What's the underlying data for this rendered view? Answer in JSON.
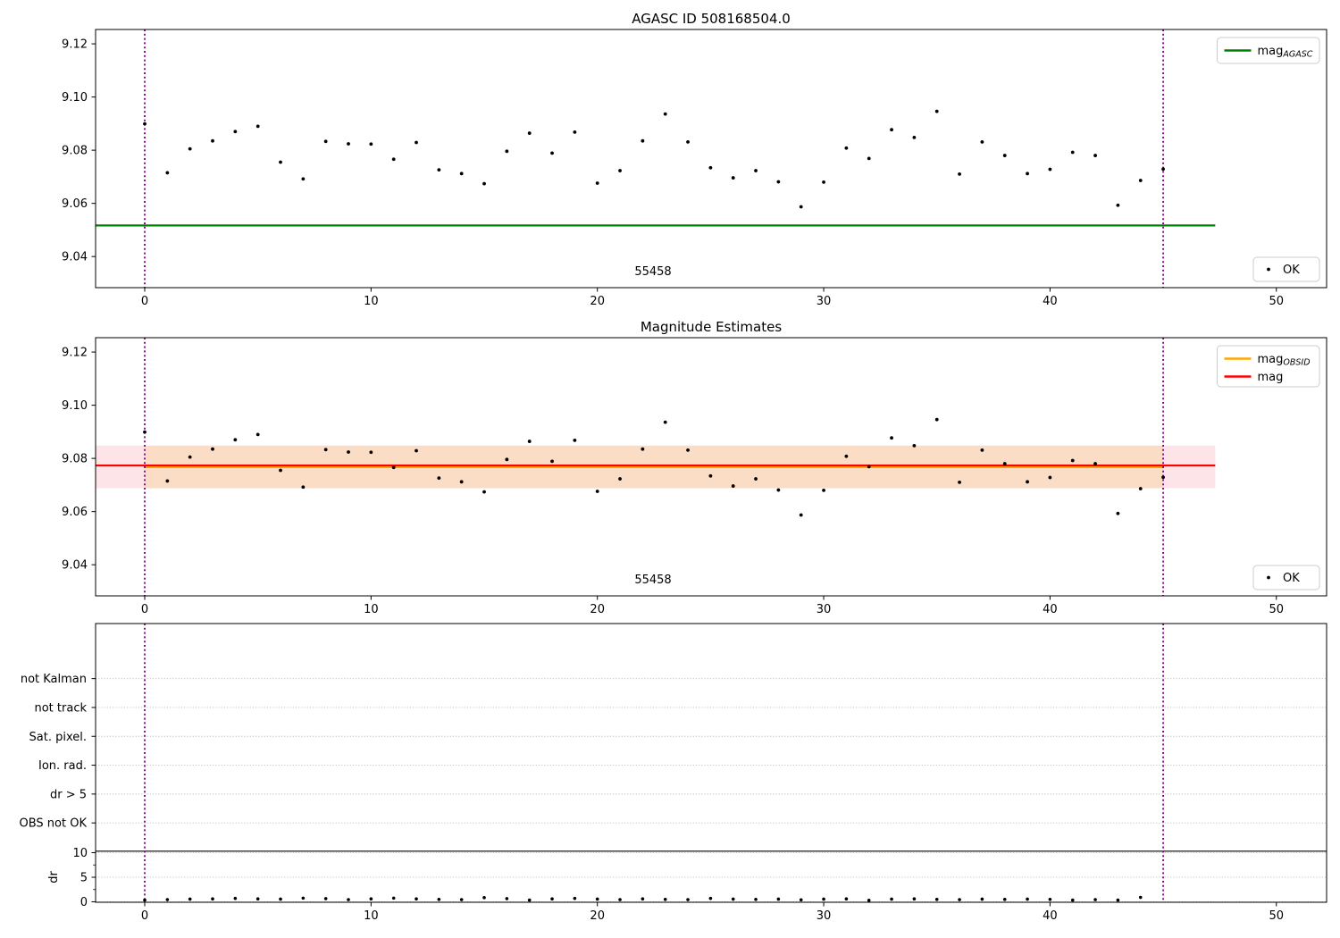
{
  "figure": {
    "background": "#ffffff"
  },
  "colors": {
    "point": "#000000",
    "vline": "#800080",
    "grid": "#b0b0b0",
    "agasc_line": "#008000",
    "mag_line": "#ff0000",
    "obsid_line": "#ffa500",
    "mag_band": "#fce4e8",
    "obsid_band": "#fbdcc4",
    "separator": "#000000"
  },
  "chart_data": [
    {
      "type": "scatter",
      "title": "AGASC ID 508168504.0",
      "xlim": [
        -2.171,
        52.22
      ],
      "ylim": [
        9.0283,
        9.1254
      ],
      "xticks": [
        0,
        10,
        20,
        30,
        40,
        50
      ],
      "yticks": [
        9.04,
        9.06,
        9.08,
        9.1,
        9.12
      ],
      "x": [
        0,
        1,
        2,
        3,
        4,
        5,
        6,
        7,
        8,
        9,
        10,
        11,
        12,
        13,
        14,
        15,
        16,
        17,
        18,
        19,
        20,
        21,
        22,
        23,
        24,
        25,
        26,
        27,
        28,
        29,
        30,
        31,
        32,
        33,
        34,
        35,
        36,
        37,
        38,
        39,
        40,
        41,
        42,
        43,
        44,
        45
      ],
      "y": [
        9.0899,
        9.0715,
        9.0805,
        9.0835,
        9.087,
        9.089,
        9.0755,
        9.0692,
        9.0833,
        9.0824,
        9.0823,
        9.0766,
        9.0829,
        9.0726,
        9.0712,
        9.0674,
        9.0796,
        9.0864,
        9.0789,
        9.0868,
        9.0676,
        9.0723,
        9.0835,
        9.0936,
        9.0831,
        9.0734,
        9.0696,
        9.0723,
        9.0681,
        9.0587,
        9.068,
        9.0808,
        9.0769,
        9.0877,
        9.0848,
        9.0946,
        9.071,
        9.0831,
        9.078,
        9.0712,
        9.0728,
        9.0792,
        9.078,
        9.0593,
        9.0686,
        9.0729
      ],
      "hlines": [
        {
          "name": "mag_AGASC",
          "value": 9.0517,
          "color_key": "agasc_line",
          "x0": -2.171,
          "x1": 47.3
        }
      ],
      "vlines": [
        0,
        45
      ],
      "annotation": {
        "text": "55458",
        "x": 22.5
      },
      "legend": [
        {
          "main": "mag",
          "sub": "AGASC",
          "color_key": "agasc_line"
        }
      ],
      "marker_legend": {
        "label": "OK"
      }
    },
    {
      "type": "scatter",
      "title": "Magnitude Estimates",
      "xlim": [
        -2.171,
        52.22
      ],
      "ylim": [
        9.0283,
        9.1254
      ],
      "xticks": [
        0,
        10,
        20,
        30,
        40,
        50
      ],
      "yticks": [
        9.04,
        9.06,
        9.08,
        9.1,
        9.12
      ],
      "x": [
        0,
        1,
        2,
        3,
        4,
        5,
        6,
        7,
        8,
        9,
        10,
        11,
        12,
        13,
        14,
        15,
        16,
        17,
        18,
        19,
        20,
        21,
        22,
        23,
        24,
        25,
        26,
        27,
        28,
        29,
        30,
        31,
        32,
        33,
        34,
        35,
        36,
        37,
        38,
        39,
        40,
        41,
        42,
        43,
        44,
        45
      ],
      "y": [
        9.0899,
        9.0715,
        9.0805,
        9.0835,
        9.087,
        9.089,
        9.0755,
        9.0692,
        9.0833,
        9.0824,
        9.0823,
        9.0766,
        9.0829,
        9.0726,
        9.0712,
        9.0674,
        9.0796,
        9.0864,
        9.0789,
        9.0868,
        9.0676,
        9.0723,
        9.0835,
        9.0936,
        9.0831,
        9.0734,
        9.0696,
        9.0723,
        9.0681,
        9.0587,
        9.068,
        9.0808,
        9.0769,
        9.0877,
        9.0848,
        9.0946,
        9.071,
        9.0831,
        9.078,
        9.0712,
        9.0728,
        9.0792,
        9.078,
        9.0593,
        9.0686,
        9.0729
      ],
      "bands": [
        {
          "lo": 9.0688,
          "hi": 9.0848,
          "color_key": "mag_band",
          "x0": -2.171,
          "x1": 47.3
        },
        {
          "lo": 9.0688,
          "hi": 9.0848,
          "color_key": "obsid_band",
          "x0": 0,
          "x1": 45
        }
      ],
      "hlines": [
        {
          "name": "mag_OBSID",
          "value": 9.0772,
          "color_key": "obsid_line",
          "x0": 0,
          "x1": 45
        },
        {
          "name": "mag",
          "value": 9.0772,
          "color_key": "mag_line",
          "x0": -2.171,
          "x1": 47.3
        }
      ],
      "vlines": [
        0,
        45
      ],
      "annotation": {
        "text": "55458",
        "x": 22.5
      },
      "legend": [
        {
          "main": "mag",
          "sub": "OBSID",
          "color_key": "obsid_line"
        },
        {
          "main": "mag",
          "sub": "",
          "color_key": "mag_line"
        }
      ],
      "marker_legend": {
        "label": "OK"
      }
    },
    {
      "type": "flags",
      "categories": [
        "not Kalman",
        "not track",
        "Sat. pixel.",
        "Ion. rad.",
        "dr > 5",
        "OBS not OK"
      ],
      "dr_label": "dr",
      "dr_ticks": [
        0,
        5,
        10
      ],
      "xlim": [
        -2.171,
        52.22
      ],
      "ylim": [
        -0.09,
        56.6
      ],
      "xticks": [
        0,
        10,
        20,
        30,
        40,
        50
      ],
      "separator_value": 10.3,
      "x": [
        0,
        1,
        2,
        3,
        4,
        5,
        6,
        7,
        8,
        9,
        10,
        11,
        12,
        13,
        14,
        15,
        16,
        17,
        18,
        19,
        20,
        21,
        22,
        23,
        24,
        25,
        26,
        27,
        28,
        29,
        30,
        31,
        32,
        33,
        34,
        35,
        36,
        37,
        38,
        39,
        40,
        41,
        42,
        43,
        44
      ],
      "dr": [
        0.35,
        0.45,
        0.55,
        0.6,
        0.7,
        0.6,
        0.55,
        0.75,
        0.65,
        0.45,
        0.6,
        0.75,
        0.6,
        0.5,
        0.45,
        0.85,
        0.65,
        0.35,
        0.6,
        0.7,
        0.55,
        0.45,
        0.6,
        0.5,
        0.45,
        0.7,
        0.55,
        0.5,
        0.55,
        0.4,
        0.55,
        0.6,
        0.3,
        0.55,
        0.6,
        0.5,
        0.45,
        0.55,
        0.5,
        0.55,
        0.5,
        0.35,
        0.45,
        0.35,
        0.9
      ],
      "vlines": [
        0,
        45
      ]
    }
  ]
}
